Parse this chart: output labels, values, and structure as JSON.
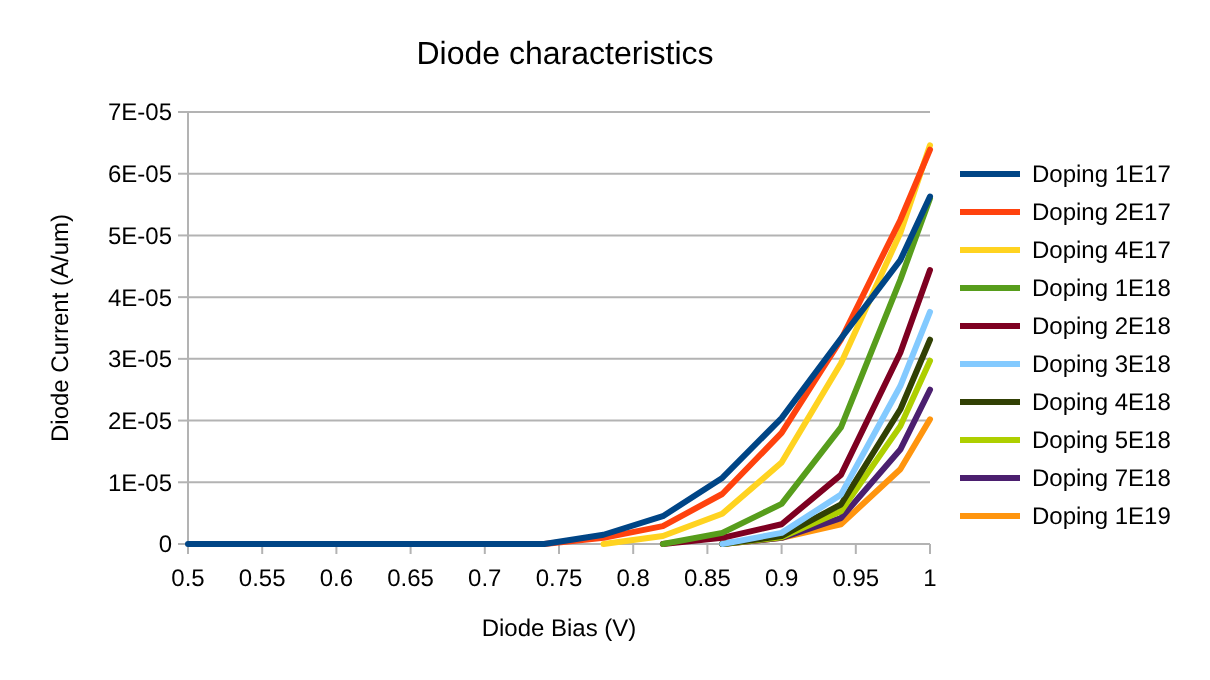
{
  "chart_data": {
    "type": "line",
    "title": "Diode characteristics",
    "xlabel": "Diode Bias (V)",
    "ylabel": "Diode Current (A/um)",
    "x": [
      0.5,
      0.54,
      0.58,
      0.62,
      0.66,
      0.7,
      0.74,
      0.78,
      0.82,
      0.86,
      0.9,
      0.94,
      0.98,
      1.0
    ],
    "series": [
      {
        "name": "Doping 1E17",
        "color": "#004586",
        "values": [
          0,
          0,
          0,
          0,
          0,
          0,
          0,
          1.5e-06,
          4.5e-06,
          1.07e-05,
          2.04e-05,
          3.33e-05,
          4.6e-05,
          5.63e-05
        ]
      },
      {
        "name": "Doping 2E17",
        "color": "#ff420e",
        "values": [
          null,
          null,
          null,
          null,
          null,
          null,
          0,
          1e-06,
          2.9e-06,
          8.1e-06,
          1.8e-05,
          3.31e-05,
          5.25e-05,
          6.39e-05
        ]
      },
      {
        "name": "Doping 4E17",
        "color": "#ffd320",
        "values": [
          null,
          null,
          null,
          null,
          null,
          null,
          null,
          0,
          1.3e-06,
          4.9e-06,
          1.32e-05,
          2.93e-05,
          5.04e-05,
          6.46e-05
        ]
      },
      {
        "name": "Doping 1E18",
        "color": "#579d1c",
        "values": [
          null,
          null,
          null,
          null,
          null,
          null,
          null,
          null,
          0,
          1.8e-06,
          6.5e-06,
          1.89e-05,
          4.28e-05,
          5.6e-05
        ]
      },
      {
        "name": "Doping 2E18",
        "color": "#7e0021",
        "values": [
          null,
          null,
          null,
          null,
          null,
          null,
          null,
          null,
          0,
          1e-06,
          3.2e-06,
          1.12e-05,
          3.1e-05,
          4.44e-05
        ]
      },
      {
        "name": "Doping 3E18",
        "color": "#83caff",
        "values": [
          null,
          null,
          null,
          null,
          null,
          null,
          null,
          null,
          null,
          0,
          1.8e-06,
          8e-06,
          2.56e-05,
          3.76e-05
        ]
      },
      {
        "name": "Doping 4E18",
        "color": "#314004",
        "values": [
          null,
          null,
          null,
          null,
          null,
          null,
          null,
          null,
          null,
          0,
          1.3e-06,
          6.4e-06,
          2.18e-05,
          3.31e-05
        ]
      },
      {
        "name": "Doping 5E18",
        "color": "#aecf00",
        "values": [
          null,
          null,
          null,
          null,
          null,
          null,
          null,
          null,
          null,
          0,
          1.1e-06,
          5.3e-06,
          1.91e-05,
          2.97e-05
        ]
      },
      {
        "name": "Doping 7E18",
        "color": "#4b1f6f",
        "values": [
          null,
          null,
          null,
          null,
          null,
          null,
          null,
          null,
          null,
          0,
          1e-06,
          4.2e-06,
          1.53e-05,
          2.5e-05
        ]
      },
      {
        "name": "Doping 1E19",
        "color": "#ff950e",
        "values": [
          null,
          null,
          null,
          null,
          null,
          null,
          null,
          null,
          null,
          0,
          1e-06,
          3.2e-06,
          1.21e-05,
          2.02e-05
        ]
      }
    ],
    "xlim": [
      0.5,
      1.0
    ],
    "xticks": [
      0.5,
      0.55,
      0.6,
      0.65,
      0.7,
      0.75,
      0.8,
      0.85,
      0.9,
      0.95,
      1
    ],
    "ylim": [
      0,
      7e-05
    ],
    "yticks": [
      0,
      {
        "value": 1e-05,
        "label": "1E-05"
      },
      {
        "value": 2e-05,
        "label": "2E-05"
      },
      {
        "value": 3e-05,
        "label": "3E-05"
      },
      {
        "value": 4e-05,
        "label": "4E-05"
      },
      {
        "value": 5e-05,
        "label": "5E-05"
      },
      {
        "value": 6e-05,
        "label": "6E-05"
      },
      {
        "value": 7e-05,
        "label": "7E-05"
      }
    ],
    "grid": "y",
    "legend": "right",
    "marker": "none",
    "line_style": "solid"
  }
}
